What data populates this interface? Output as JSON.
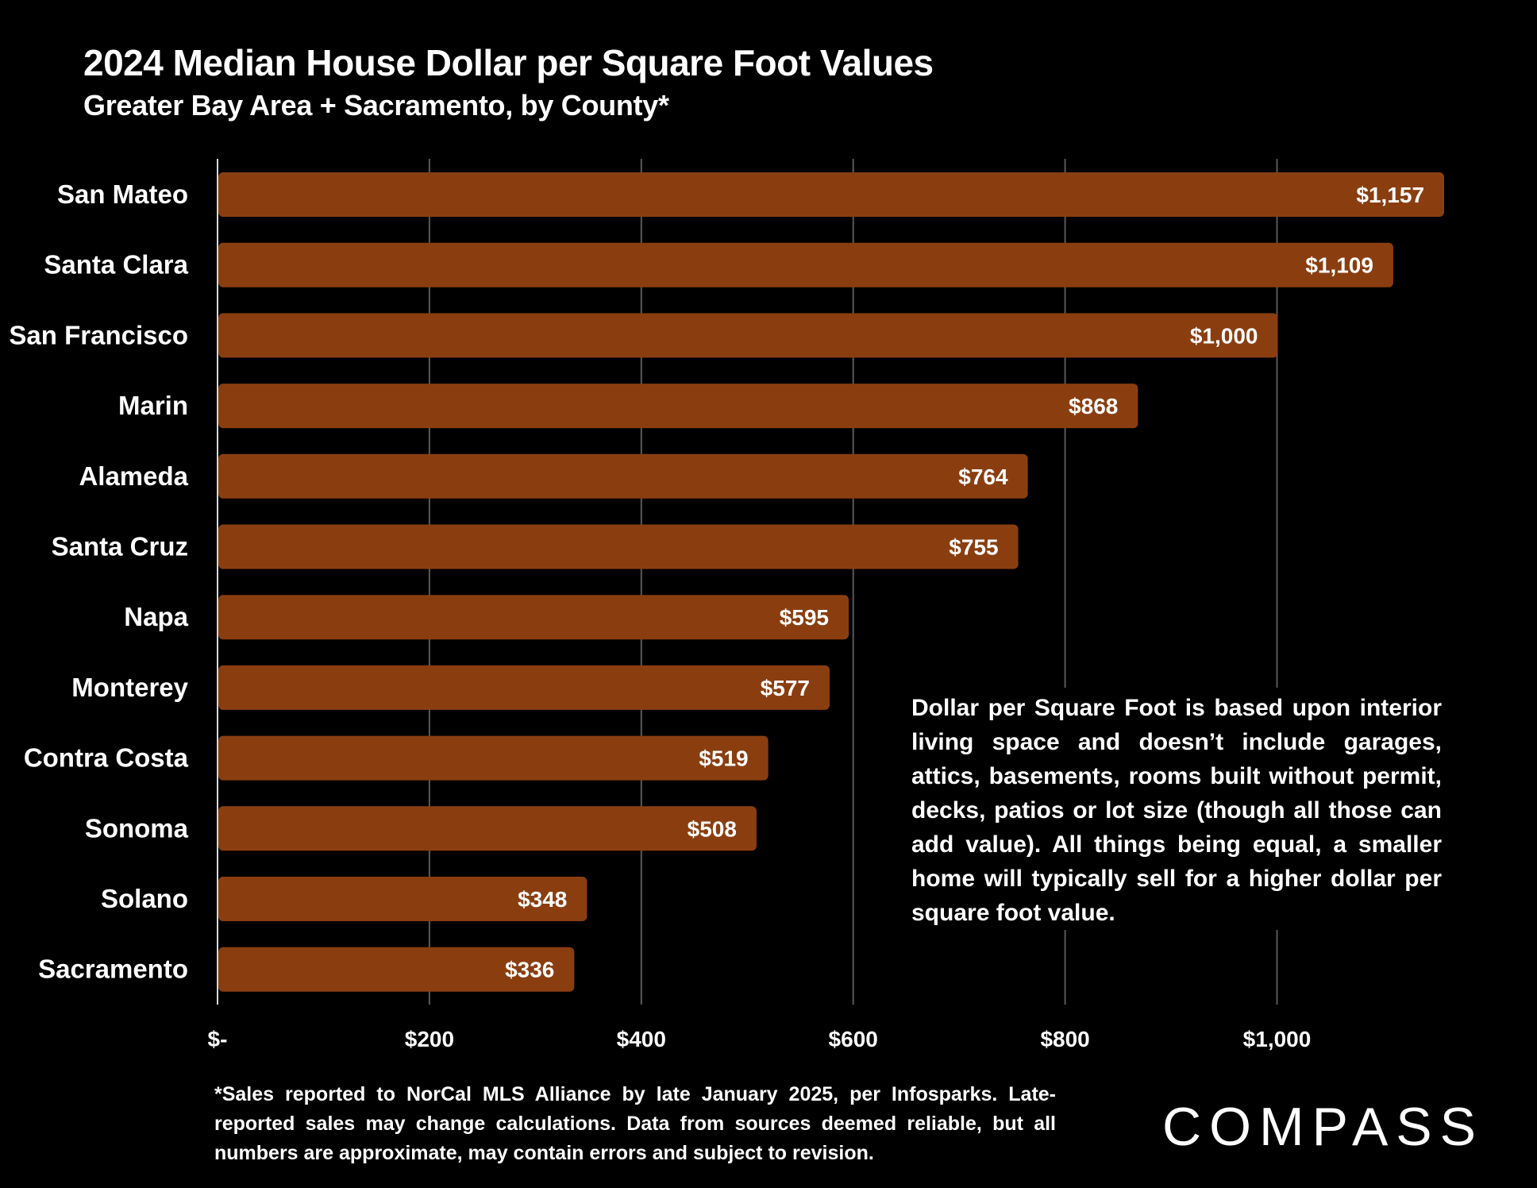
{
  "header": {
    "title": "2024 Median House Dollar per Square Foot Values",
    "subtitle": "Greater Bay Area + Sacramento, by County*"
  },
  "note": "Dollar per Square Foot is based upon interior living space and doesn’t include garages, attics, basements, rooms built without permit, decks, patios or lot size (though all those can add value). All things being equal, a smaller home will typically sell for a higher dollar per square foot value.",
  "footnote": "*Sales reported to NorCal MLS Alliance by late January 2025, per Infosparks. Late-reported sales may change calculations. Data from sources deemed reliable, but all numbers are approximate, may contain errors and subject to revision.",
  "logo": "COMPASS",
  "colors": {
    "bar": "#8A3E10",
    "gridline": "#595959",
    "axis": "#d9d9d9",
    "background": "#000000",
    "text": "#ffffff"
  },
  "chart_data": {
    "type": "bar",
    "orientation": "horizontal",
    "title": "2024 Median House Dollar per Square Foot Values",
    "subtitle": "Greater Bay Area + Sacramento, by County*",
    "xlabel": "",
    "ylabel": "",
    "categories": [
      "San Mateo",
      "Santa Clara",
      "San Francisco",
      "Marin",
      "Alameda",
      "Santa Cruz",
      "Napa",
      "Monterey",
      "Contra Costa",
      "Sonoma",
      "Solano",
      "Sacramento"
    ],
    "values": [
      1157,
      1109,
      1000,
      868,
      764,
      755,
      595,
      577,
      519,
      508,
      348,
      336
    ],
    "data_labels": [
      "$1,157",
      "$1,109",
      "$1,000",
      "$868",
      "$764",
      "$755",
      "$595",
      "$577",
      "$519",
      "$508",
      "$348",
      "$336"
    ],
    "xlim": [
      0,
      1200
    ],
    "xticks": [
      0,
      200,
      400,
      600,
      800,
      1000
    ],
    "xtick_labels": [
      "$-",
      "$200",
      "$400",
      "$600",
      "$800",
      "$1,000"
    ],
    "grid": true,
    "legend": "none"
  }
}
